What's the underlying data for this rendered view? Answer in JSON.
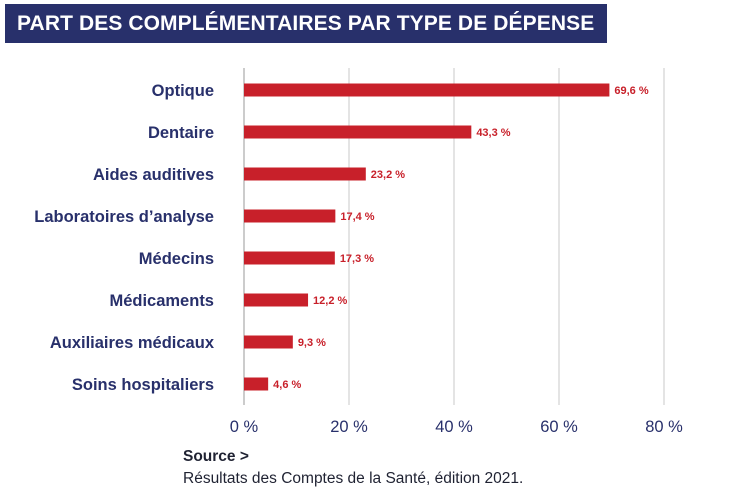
{
  "title": "PART DES COMPLÉMENTAIRES PAR TYPE DE DÉPENSE",
  "source": {
    "heading": "Source >",
    "text": "Résultats des Comptes de la Santé, édition 2021."
  },
  "colors": {
    "bar": "#c8202a",
    "banner": "#28306b",
    "label": "#28306b",
    "grid": "#c8c8c8"
  },
  "chart_data": {
    "type": "bar",
    "orientation": "horizontal",
    "title": "PART DES COMPLÉMENTAIRES PAR TYPE DE DÉPENSE",
    "categories": [
      "Optique",
      "Dentaire",
      "Aides auditives",
      "Laboratoires d’analyse",
      "Médecins",
      "Médicaments",
      "Auxiliaires médicaux",
      "Soins hospitaliers"
    ],
    "values": [
      69.6,
      43.3,
      23.2,
      17.4,
      17.3,
      12.2,
      9.3,
      4.6
    ],
    "value_labels": [
      "69,6 %",
      "43,3 %",
      "23,2 %",
      "17,4 %",
      "17,3 %",
      "12,2 %",
      "9,3 %",
      "4,6 %"
    ],
    "xlim": [
      0,
      80
    ],
    "xticks": [
      0,
      20,
      40,
      60,
      80
    ],
    "xtick_labels": [
      "0 %",
      "20 %",
      "40 %",
      "60 %",
      "80 %"
    ],
    "xlabel": "",
    "ylabel": "",
    "grid": "vertical"
  }
}
